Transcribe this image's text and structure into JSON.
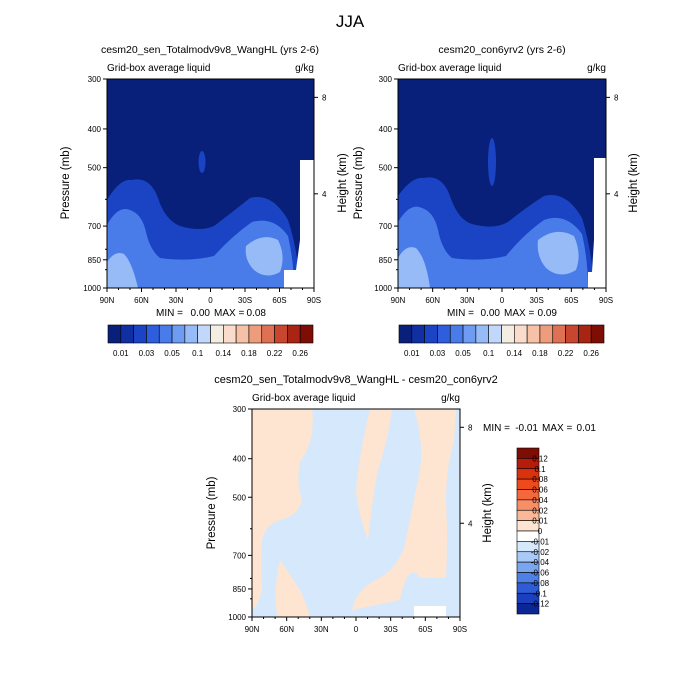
{
  "figure": {
    "title": "JJA"
  },
  "chart_data": [
    {
      "type": "heatmap",
      "title": "cesm20_sen_Totalmodv9v8_WangHL (yrs 2-6)",
      "subtitle_left": "Grid-box average liquid",
      "subtitle_right": "g/kg",
      "ylabel": "Pressure (mb)",
      "ylabel_right": "Height (km)",
      "x_ticks": [
        "90N",
        "60N",
        "30N",
        "0",
        "30S",
        "60S",
        "90S"
      ],
      "y_ticks": [
        "300",
        "400",
        "500",
        "700",
        "850",
        "1000"
      ],
      "y_right_ticks": [
        "8",
        "4"
      ],
      "ylim": [
        1000,
        300
      ],
      "y_scale": "log",
      "stats": {
        "min_label": "MIN =",
        "min": "0.00",
        "max_label": "MAX =",
        "max": "0.08"
      },
      "colorbar": {
        "orientation": "horizontal",
        "labels": [
          "0.01",
          "0.03",
          "0.05",
          "0.1",
          "0.14",
          "0.18",
          "0.22",
          "0.26"
        ],
        "colors": [
          "#08207a",
          "#0f2fa3",
          "#1a44c4",
          "#2e5ede",
          "#4a7ce9",
          "#6e9cf2",
          "#97bbf7",
          "#c2d8fb",
          "#f3ede2",
          "#fadccd",
          "#f6c1a6",
          "#ee9d7c",
          "#de7154",
          "#c8452f",
          "#a82413",
          "#7e0d06"
        ]
      }
    },
    {
      "type": "heatmap",
      "title": "cesm20_con6yrv2 (yrs 2-6)",
      "subtitle_left": "Grid-box average liquid",
      "subtitle_right": "g/kg",
      "ylabel": "Pressure (mb)",
      "ylabel_right": "Height (km)",
      "x_ticks": [
        "90N",
        "60N",
        "30N",
        "0",
        "30S",
        "60S",
        "90S"
      ],
      "y_ticks": [
        "300",
        "400",
        "500",
        "700",
        "850",
        "1000"
      ],
      "y_right_ticks": [
        "8",
        "4"
      ],
      "ylim": [
        1000,
        300
      ],
      "y_scale": "log",
      "stats": {
        "min_label": "MIN =",
        "min": "0.00",
        "max_label": "MAX =",
        "max": "0.09"
      },
      "colorbar": {
        "orientation": "horizontal",
        "labels": [
          "0.01",
          "0.03",
          "0.05",
          "0.1",
          "0.14",
          "0.18",
          "0.22",
          "0.26"
        ],
        "colors": [
          "#08207a",
          "#0f2fa3",
          "#1a44c4",
          "#2e5ede",
          "#4a7ce9",
          "#6e9cf2",
          "#97bbf7",
          "#c2d8fb",
          "#f3ede2",
          "#fadccd",
          "#f6c1a6",
          "#ee9d7c",
          "#de7154",
          "#c8452f",
          "#a82413",
          "#7e0d06"
        ]
      }
    },
    {
      "type": "heatmap",
      "title": "cesm20_sen_Totalmodv9v8_WangHL - cesm20_con6yrv2",
      "subtitle_left": "Grid-box average liquid",
      "subtitle_right": "g/kg",
      "ylabel": "Pressure (mb)",
      "ylabel_right": "Height (km)",
      "x_ticks": [
        "90N",
        "60N",
        "30N",
        "0",
        "30S",
        "60S",
        "90S"
      ],
      "y_ticks": [
        "300",
        "400",
        "500",
        "700",
        "850",
        "1000"
      ],
      "y_right_ticks": [
        "8",
        "4"
      ],
      "ylim": [
        1000,
        300
      ],
      "y_scale": "log",
      "stats": {
        "min_label": "MIN =",
        "min": "-0.01",
        "max_label": "MAX =",
        "max": "0.01"
      },
      "colorbar": {
        "orientation": "vertical",
        "labels": [
          "0.12",
          "0.1",
          "0.08",
          "0.06",
          "0.04",
          "0.02",
          "0.01",
          "0",
          "-0.01",
          "-0.02",
          "-0.04",
          "-0.06",
          "-0.08",
          "-0.1",
          "-0.12"
        ],
        "colors": [
          "#7e0d06",
          "#b51c0a",
          "#d8320f",
          "#ee4a1c",
          "#f5683c",
          "#f88e66",
          "#fab898",
          "#fde5d2",
          "#ffffff",
          "#d6e8fb",
          "#a9c9f7",
          "#7aa6f0",
          "#4f80e6",
          "#2d5cd6",
          "#1a3fbf",
          "#0b2795"
        ]
      }
    }
  ]
}
